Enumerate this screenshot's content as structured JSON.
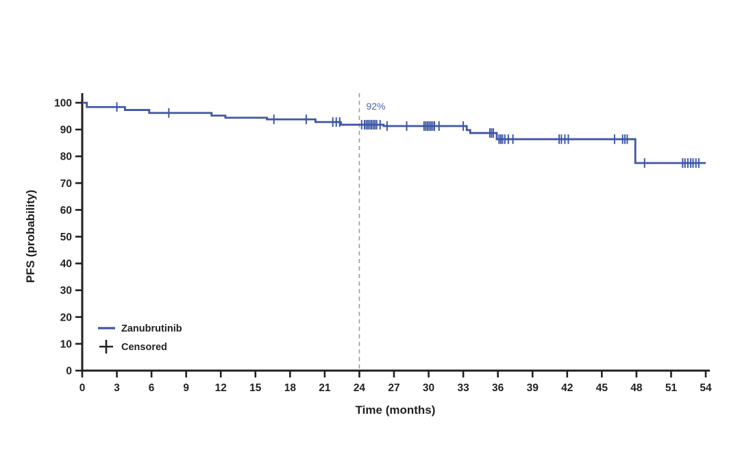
{
  "chart_data": {
    "type": "line",
    "subtype": "kaplan-meier-step",
    "title": "",
    "xlabel": "Time (months)",
    "ylabel": "PFS (probability)",
    "xlim": [
      0,
      54
    ],
    "ylim": [
      0,
      100
    ],
    "x_ticks": [
      0,
      3,
      6,
      9,
      12,
      15,
      18,
      21,
      24,
      27,
      30,
      33,
      36,
      39,
      42,
      45,
      48,
      51,
      54
    ],
    "y_ticks": [
      0,
      10,
      20,
      30,
      40,
      50,
      60,
      70,
      80,
      90,
      100
    ],
    "grid": false,
    "legend_position": "lower-left",
    "series": [
      {
        "name": "Zanubrutinib",
        "color": "#3d56a6",
        "step_points": [
          [
            0,
            100
          ],
          [
            0.4,
            98.4
          ],
          [
            3.7,
            97.3
          ],
          [
            5.8,
            96.2
          ],
          [
            11.2,
            95.2
          ],
          [
            12.4,
            94.4
          ],
          [
            16.0,
            93.8
          ],
          [
            20.2,
            92.8
          ],
          [
            22.4,
            91.8
          ],
          [
            26.1,
            91.3
          ],
          [
            33.3,
            89.8
          ],
          [
            33.6,
            88.7
          ],
          [
            35.9,
            86.4
          ],
          [
            47.9,
            77.5
          ],
          [
            54,
            77.5
          ]
        ],
        "censor_marks": [
          [
            3.0,
            98.4
          ],
          [
            7.5,
            96.2
          ],
          [
            16.6,
            93.8
          ],
          [
            19.4,
            93.8
          ],
          [
            21.7,
            92.8
          ],
          [
            22.0,
            92.8
          ],
          [
            22.3,
            92.8
          ],
          [
            24.2,
            91.8
          ],
          [
            24.45,
            91.8
          ],
          [
            24.6,
            91.8
          ],
          [
            24.75,
            91.8
          ],
          [
            24.9,
            91.8
          ],
          [
            25.05,
            91.8
          ],
          [
            25.2,
            91.8
          ],
          [
            25.35,
            91.8
          ],
          [
            25.5,
            91.8
          ],
          [
            25.8,
            91.8
          ],
          [
            26.4,
            91.3
          ],
          [
            28.1,
            91.3
          ],
          [
            29.6,
            91.3
          ],
          [
            29.75,
            91.3
          ],
          [
            29.9,
            91.3
          ],
          [
            30.05,
            91.3
          ],
          [
            30.2,
            91.3
          ],
          [
            30.35,
            91.3
          ],
          [
            30.5,
            91.3
          ],
          [
            30.9,
            91.3
          ],
          [
            33.0,
            91.3
          ],
          [
            35.3,
            88.7
          ],
          [
            35.45,
            88.7
          ],
          [
            35.6,
            88.7
          ],
          [
            36.1,
            86.4
          ],
          [
            36.25,
            86.4
          ],
          [
            36.4,
            86.4
          ],
          [
            36.6,
            86.4
          ],
          [
            36.9,
            86.4
          ],
          [
            37.3,
            86.4
          ],
          [
            41.3,
            86.4
          ],
          [
            41.5,
            86.4
          ],
          [
            41.8,
            86.4
          ],
          [
            42.1,
            86.4
          ],
          [
            46.1,
            86.4
          ],
          [
            46.8,
            86.4
          ],
          [
            47.0,
            86.4
          ],
          [
            47.2,
            86.4
          ],
          [
            48.7,
            77.5
          ],
          [
            52.0,
            77.5
          ],
          [
            52.2,
            77.5
          ],
          [
            52.45,
            77.5
          ],
          [
            52.7,
            77.5
          ],
          [
            52.9,
            77.5
          ],
          [
            53.15,
            77.5
          ],
          [
            53.4,
            77.5
          ]
        ]
      }
    ],
    "annotation": {
      "x": 24,
      "label": "92%"
    },
    "legend": [
      {
        "symbol": "line",
        "label": "Zanubrutinib"
      },
      {
        "symbol": "plus",
        "label": "Censored"
      }
    ]
  },
  "colors": {
    "curve": "#3d56a6",
    "axis": "#231f20",
    "dashed_line": "#9b9b9b",
    "annotation_text": "#4a63a8"
  }
}
